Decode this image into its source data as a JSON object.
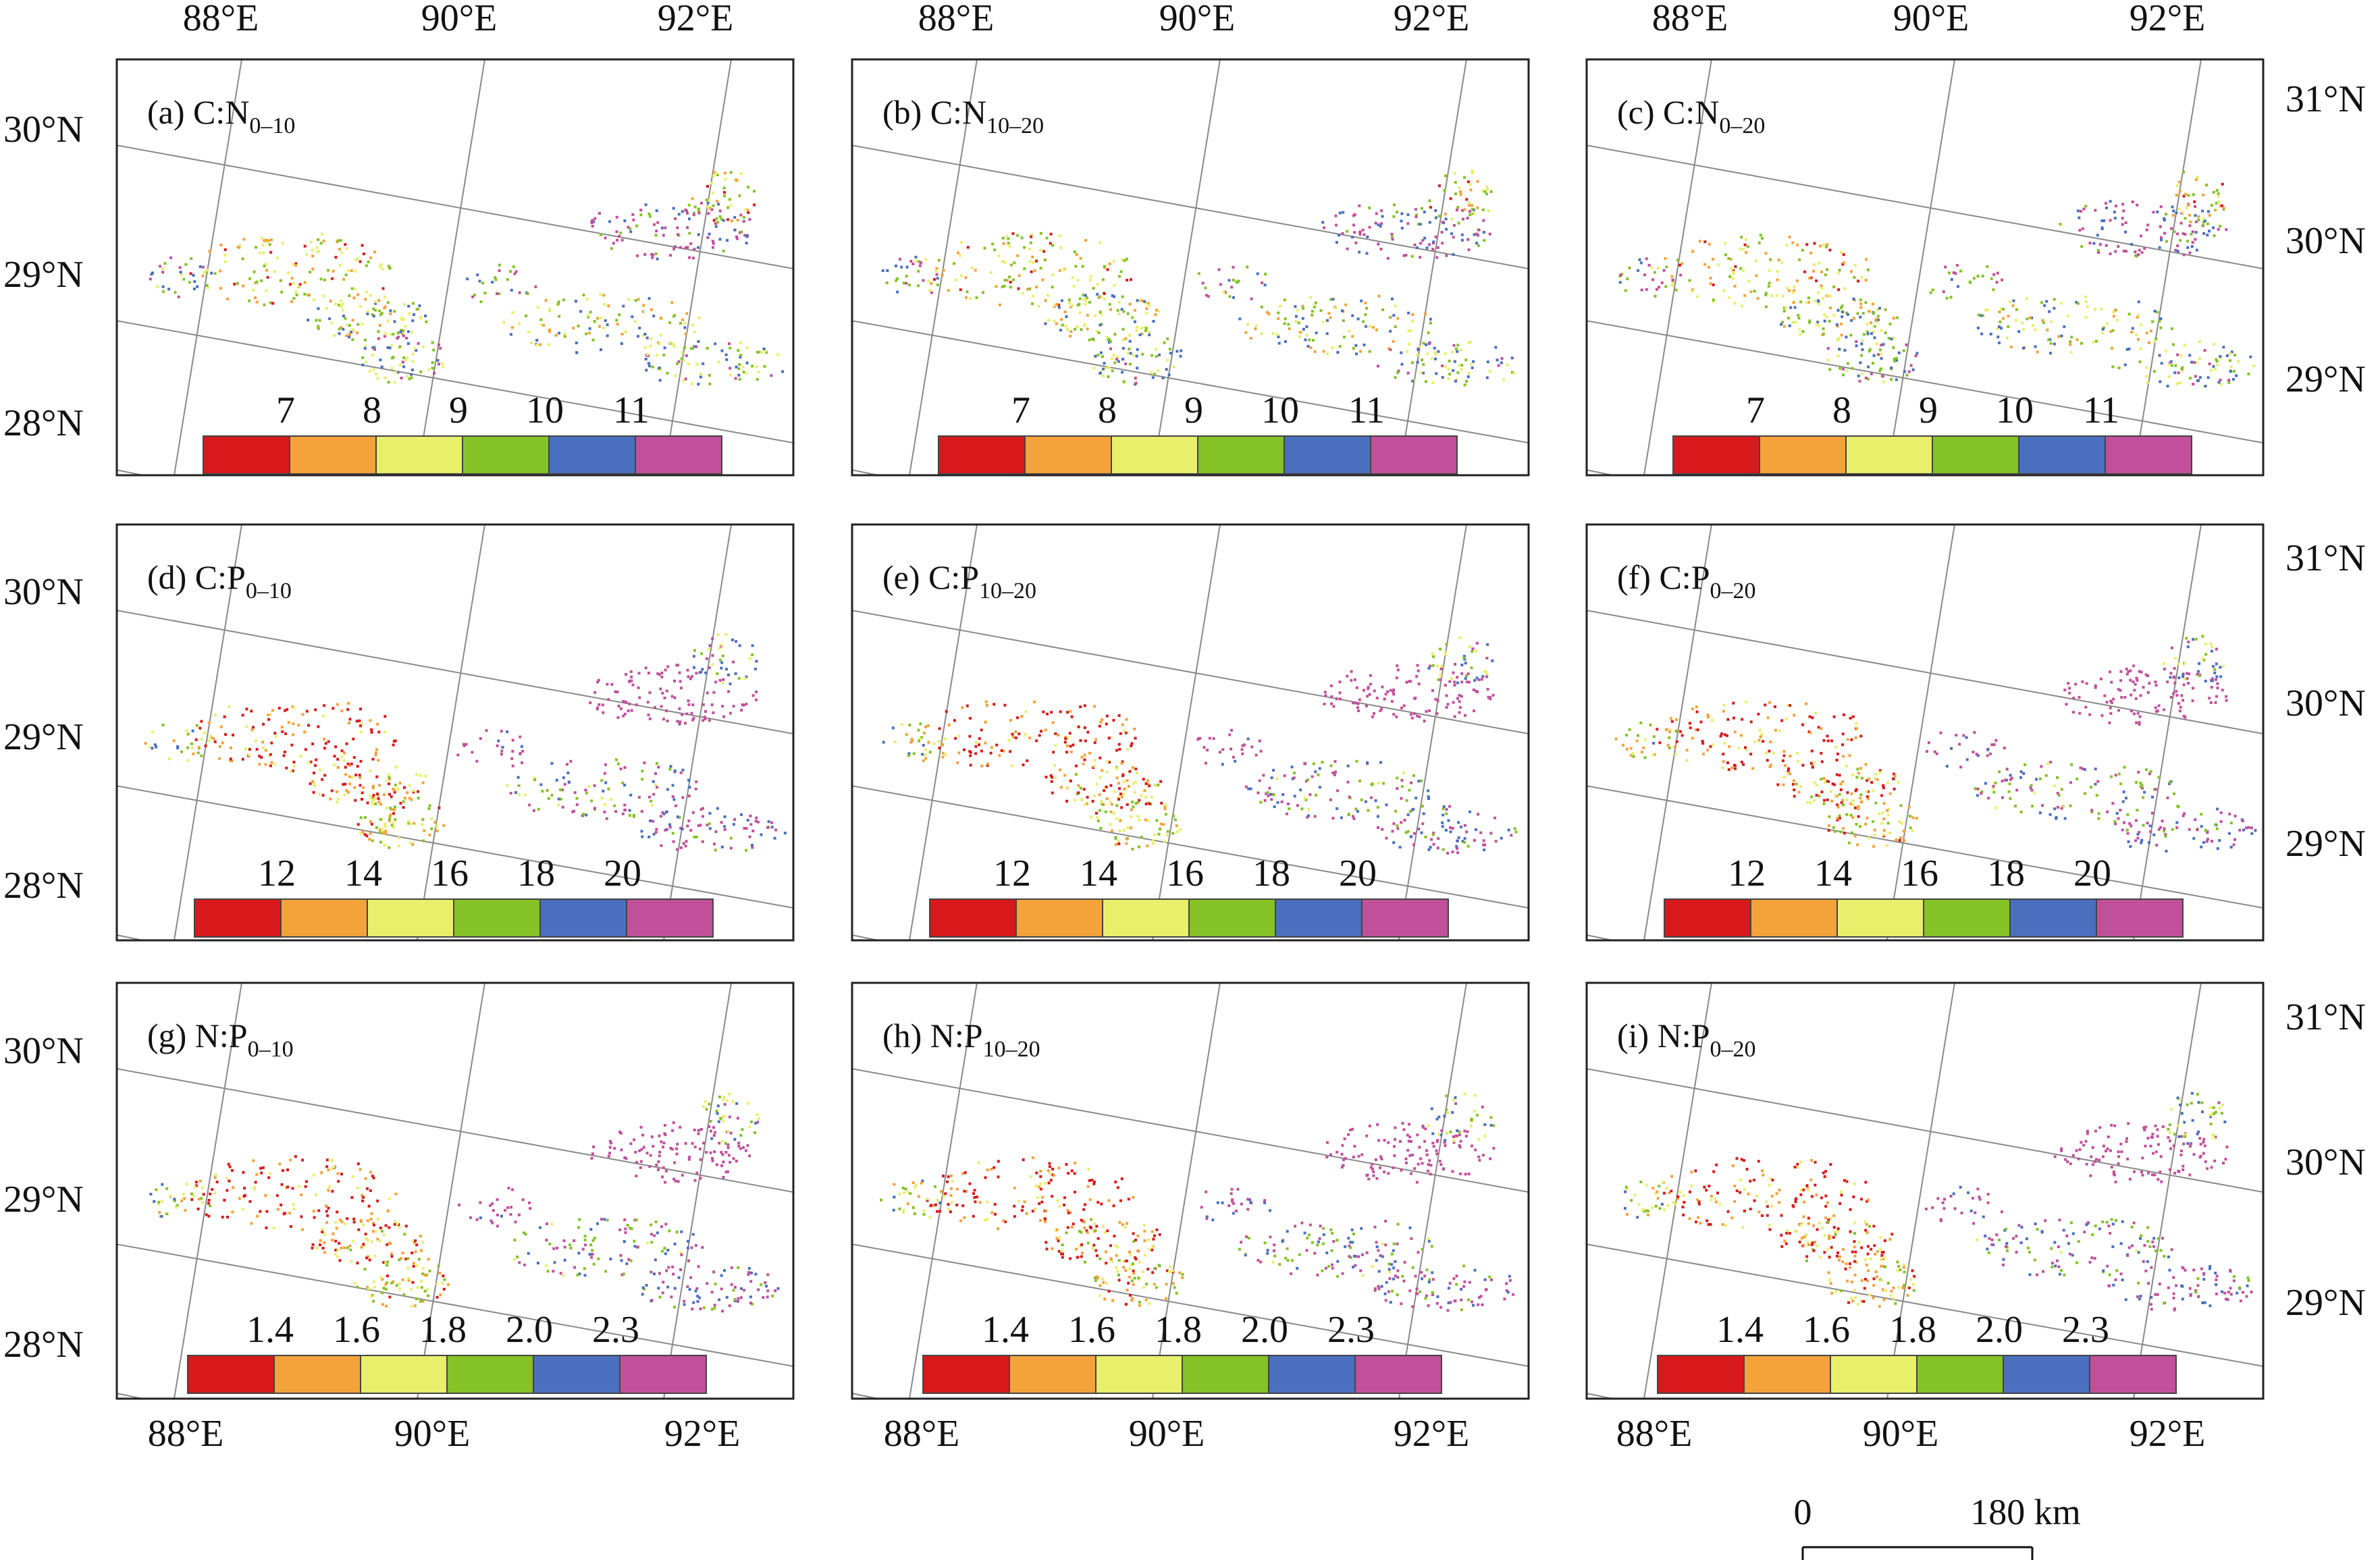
{
  "panels": [
    {
      "id": "a",
      "label": "(a) C:N",
      "sub": "0–10",
      "legend": [
        "7",
        "8",
        "9",
        "10",
        "11"
      ]
    },
    {
      "id": "b",
      "label": "(b) C:N",
      "sub": "10–20",
      "legend": [
        "7",
        "8",
        "9",
        "10",
        "11"
      ]
    },
    {
      "id": "c",
      "label": "(c) C:N",
      "sub": "0–20",
      "legend": [
        "7",
        "8",
        "9",
        "10",
        "11"
      ]
    },
    {
      "id": "d",
      "label": "(d) C:P",
      "sub": "0–10",
      "legend": [
        "12",
        "14",
        "16",
        "18",
        "20"
      ]
    },
    {
      "id": "e",
      "label": "(e) C:P",
      "sub": "10–20",
      "legend": [
        "12",
        "14",
        "16",
        "18",
        "20"
      ]
    },
    {
      "id": "f",
      "label": "(f) C:P",
      "sub": "0–20",
      "legend": [
        "12",
        "14",
        "16",
        "18",
        "20"
      ]
    },
    {
      "id": "g",
      "label": "(g) N:P",
      "sub": "0–10",
      "legend": [
        "1.4",
        "1.6",
        "1.8",
        "2.0",
        "2.3"
      ]
    },
    {
      "id": "h",
      "label": "(h) N:P",
      "sub": "10–20",
      "legend": [
        "1.4",
        "1.6",
        "1.8",
        "2.0",
        "2.3"
      ]
    },
    {
      "id": "i",
      "label": "(i) N:P",
      "sub": "0–20",
      "legend": [
        "1.4",
        "1.6",
        "1.8",
        "2.0",
        "2.3"
      ]
    }
  ],
  "legend_colors": [
    "#d7191c",
    "#f4a23a",
    "#e8ef6a",
    "#84c225",
    "#4a6fbf",
    "#c1509a"
  ],
  "axes": {
    "lon_labels": [
      "88°E",
      "90°E",
      "92°E"
    ],
    "left_lat_labels": [
      "30°N",
      "29°N",
      "28°N"
    ],
    "right_lat_labels": [
      "31°N",
      "30°N",
      "29°N"
    ]
  },
  "scale_bar": {
    "start": "0",
    "end": "180 km"
  }
}
